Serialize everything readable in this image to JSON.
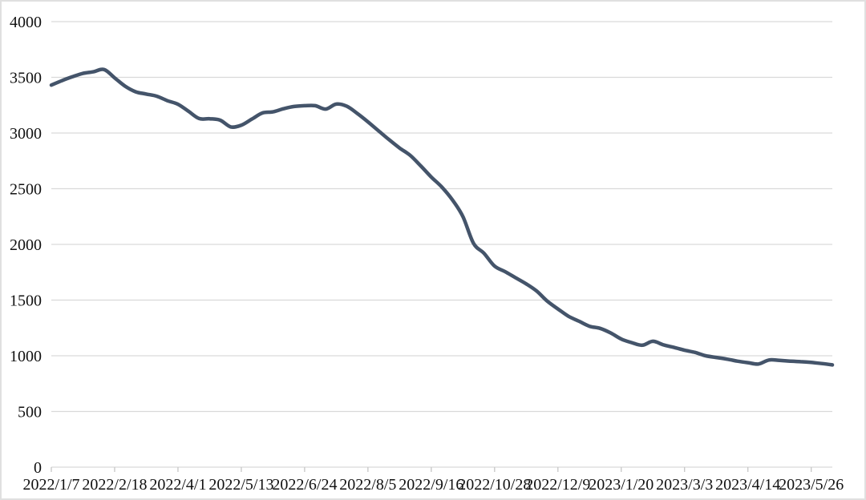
{
  "page": {
    "background_color": "#ffffff",
    "frame_border_color": "#e0e0e0"
  },
  "chart_data": {
    "type": "line",
    "title": "",
    "xlabel": "",
    "ylabel": "",
    "legend": "none",
    "grid": "horizontal",
    "ylim": [
      0,
      4000
    ],
    "y_ticks": [
      0,
      500,
      1000,
      1500,
      2000,
      2500,
      3000,
      3500,
      4000
    ],
    "y_tick_labels": [
      "0",
      "500",
      "1000",
      "1500",
      "2000",
      "2500",
      "3000",
      "3500",
      "4000"
    ],
    "x_tick_labels": [
      "2022/1/7",
      "2022/2/18",
      "2022/4/1",
      "2022/5/13",
      "2022/6/24",
      "2022/8/5",
      "2022/9/16",
      "2022/10/28",
      "2022/12/9",
      "2023/1/20",
      "2023/3/3",
      "2023/4/14",
      "2023/5/26"
    ],
    "x_tick_every": 6,
    "x": [
      "2022/1/7",
      "2022/1/14",
      "2022/1/21",
      "2022/1/28",
      "2022/2/4",
      "2022/2/11",
      "2022/2/18",
      "2022/2/25",
      "2022/3/4",
      "2022/3/11",
      "2022/3/18",
      "2022/3/25",
      "2022/4/1",
      "2022/4/8",
      "2022/4/15",
      "2022/4/22",
      "2022/4/29",
      "2022/5/6",
      "2022/5/13",
      "2022/5/20",
      "2022/5/27",
      "2022/6/3",
      "2022/6/10",
      "2022/6/17",
      "2022/6/24",
      "2022/7/1",
      "2022/7/8",
      "2022/7/15",
      "2022/7/22",
      "2022/7/29",
      "2022/8/5",
      "2022/8/12",
      "2022/8/19",
      "2022/8/26",
      "2022/9/2",
      "2022/9/9",
      "2022/9/16",
      "2022/9/23",
      "2022/9/30",
      "2022/10/7",
      "2022/10/14",
      "2022/10/21",
      "2022/10/28",
      "2022/11/4",
      "2022/11/11",
      "2022/11/18",
      "2022/11/25",
      "2022/12/2",
      "2022/12/9",
      "2022/12/16",
      "2022/12/23",
      "2022/12/30",
      "2023/1/6",
      "2023/1/13",
      "2023/1/20",
      "2023/1/27",
      "2023/2/3",
      "2023/2/10",
      "2023/2/17",
      "2023/2/24",
      "2023/3/3",
      "2023/3/10",
      "2023/3/17",
      "2023/3/24",
      "2023/3/31",
      "2023/4/7",
      "2023/4/14",
      "2023/4/21",
      "2023/4/28",
      "2023/5/5",
      "2023/5/12",
      "2023/5/19",
      "2023/5/26",
      "2023/6/2",
      "2023/6/9"
    ],
    "series": [
      {
        "name": "value",
        "color": "#44546A",
        "values": [
          3430,
          3470,
          3505,
          3535,
          3550,
          3570,
          3495,
          3420,
          3370,
          3350,
          3330,
          3290,
          3258,
          3195,
          3130,
          3128,
          3115,
          3055,
          3070,
          3125,
          3180,
          3190,
          3218,
          3238,
          3245,
          3245,
          3215,
          3260,
          3240,
          3175,
          3100,
          3020,
          2940,
          2865,
          2800,
          2705,
          2605,
          2515,
          2400,
          2250,
          2010,
          1920,
          1805,
          1755,
          1700,
          1645,
          1580,
          1490,
          1420,
          1355,
          1310,
          1265,
          1246,
          1205,
          1150,
          1118,
          1095,
          1130,
          1098,
          1075,
          1050,
          1030,
          1000,
          985,
          970,
          952,
          938,
          926,
          962,
          958,
          952,
          947,
          940,
          930,
          918
        ]
      }
    ],
    "colors": {
      "line": "#44546A",
      "gridline": "#d9d9d9",
      "axis": "#d9d9d9",
      "tick": "#c6c6c6",
      "label": "#111111"
    }
  }
}
